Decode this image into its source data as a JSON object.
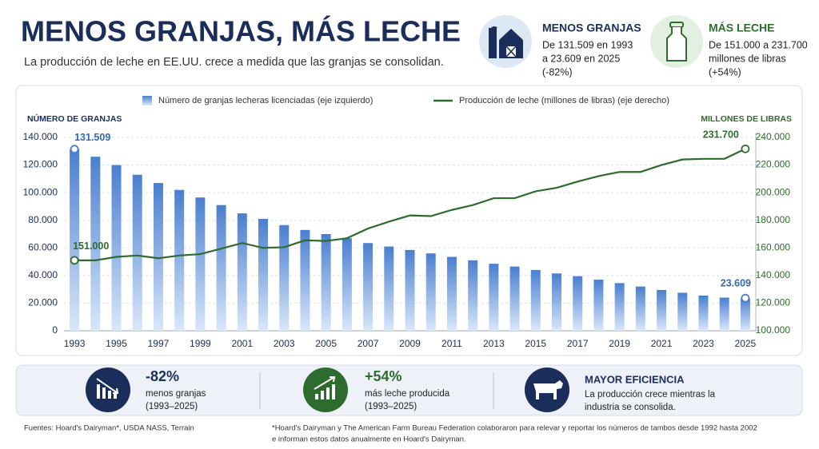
{
  "header": {
    "title": "MENOS GRANJAS, MÁS LECHE",
    "subtitle": "La producción de leche en EE.UU. crece a medida que las granjas se consolidan."
  },
  "info_cards": [
    {
      "title": "MENOS GRANJAS",
      "lines": [
        "De 131.509 en 1993",
        "a 23.609 en 2025",
        "(-82%)"
      ]
    },
    {
      "title": "MÁS LECHE",
      "lines": [
        "De 151.000 a 231.700",
        "millones de libras",
        "(+54%)"
      ]
    }
  ],
  "chart_data": {
    "type": "combo",
    "y_label": "NÚMERO DE GRANJAS",
    "y2_label": "MILLONES DE LIBRAS",
    "categories": [
      "1993",
      null,
      "1995",
      null,
      "1997",
      null,
      "1999",
      null,
      "2001",
      null,
      "2003",
      null,
      "2005",
      null,
      "2007",
      null,
      "2009",
      null,
      "2011",
      null,
      "2013",
      null,
      "2015",
      null,
      "2017",
      null,
      "2019",
      null,
      "2021",
      null,
      "2023",
      null,
      "2025"
    ],
    "series": [
      {
        "name": "Número de granjas lecheras licenciadas (eje izquierdo)",
        "type": "bar",
        "color": "#4a7fcf",
        "values": [
          131509,
          126000,
          120000,
          113000,
          107000,
          102000,
          96500,
          91000,
          85000,
          81000,
          76500,
          73000,
          70000,
          67000,
          63500,
          61000,
          58500,
          56000,
          53500,
          51000,
          48500,
          46500,
          44000,
          41500,
          39500,
          37000,
          34500,
          32000,
          29500,
          27500,
          25500,
          24000,
          23609
        ],
        "value_labels": [
          "131.509",
          null,
          null,
          null,
          null,
          null,
          null,
          null,
          null,
          null,
          null,
          null,
          null,
          null,
          null,
          null,
          null,
          null,
          null,
          null,
          null,
          null,
          null,
          null,
          null,
          null,
          null,
          null,
          null,
          null,
          null,
          null,
          "23.609"
        ]
      },
      {
        "name": "Producción de leche (millones de libras) (eje derecho)",
        "type": "line",
        "axis": "y2",
        "color": "#2e6b2e",
        "values": [
          151000,
          151000,
          153500,
          154500,
          152500,
          154500,
          155500,
          159500,
          163500,
          160000,
          160500,
          165500,
          165000,
          167000,
          174000,
          179000,
          183500,
          183000,
          187500,
          191000,
          196000,
          196000,
          201000,
          203500,
          208000,
          212000,
          215000,
          215000,
          220000,
          224000,
          224500,
          224500,
          231700
        ],
        "value_labels": [
          "151.000",
          null,
          null,
          null,
          null,
          null,
          null,
          null,
          null,
          null,
          null,
          null,
          null,
          null,
          null,
          null,
          null,
          null,
          null,
          null,
          null,
          null,
          null,
          null,
          null,
          null,
          null,
          null,
          null,
          null,
          null,
          null,
          "231.700"
        ]
      }
    ],
    "ylim": [
      0,
      140000
    ],
    "yticks": [
      0,
      {
        "value": 20000,
        "label": "20.000"
      },
      {
        "value": 40000,
        "label": "40.000"
      },
      {
        "value": 60000,
        "label": "60.000"
      },
      {
        "value": 80000,
        "label": "80.000"
      },
      {
        "value": 100000,
        "label": "100.000"
      },
      {
        "value": 120000,
        "label": "120.000"
      },
      {
        "value": 140000,
        "label": "140.000"
      }
    ],
    "y2lim": [
      100000,
      240000
    ],
    "y2ticks": [
      {
        "value": 100000,
        "label": "100.000"
      },
      {
        "value": 120000,
        "label": "120.000"
      },
      {
        "value": 140000,
        "label": "140.000"
      },
      {
        "value": 160000,
        "label": "160.000"
      },
      {
        "value": 180000,
        "label": "180.000"
      },
      {
        "value": 200000,
        "label": "200.000"
      },
      {
        "value": 220000,
        "label": "220.000"
      },
      {
        "value": 240000,
        "label": "240.000"
      }
    ],
    "grid": true
  },
  "stats": [
    {
      "value": "-82%",
      "lines": [
        "menos granjas",
        "(1993–2025)"
      ]
    },
    {
      "value": "+54%",
      "lines": [
        "más leche producida",
        "(1993–2025)"
      ]
    },
    {
      "value": "MAYOR EFICIENCIA",
      "lines": [
        "La producción crece mientras la",
        "industria se consolida."
      ]
    }
  ],
  "footer": {
    "sources": "Fuentes: Hoard's Dairyman*, USDA NASS, Terrain",
    "note": [
      "*Hoard's Dairyman y The American Farm Bureau Federation colaboraron para relevar y reportar los números de tambos desde 1992 hasta 2002",
      "e informan estos datos anualmente en Hoard's Dairyman."
    ]
  }
}
